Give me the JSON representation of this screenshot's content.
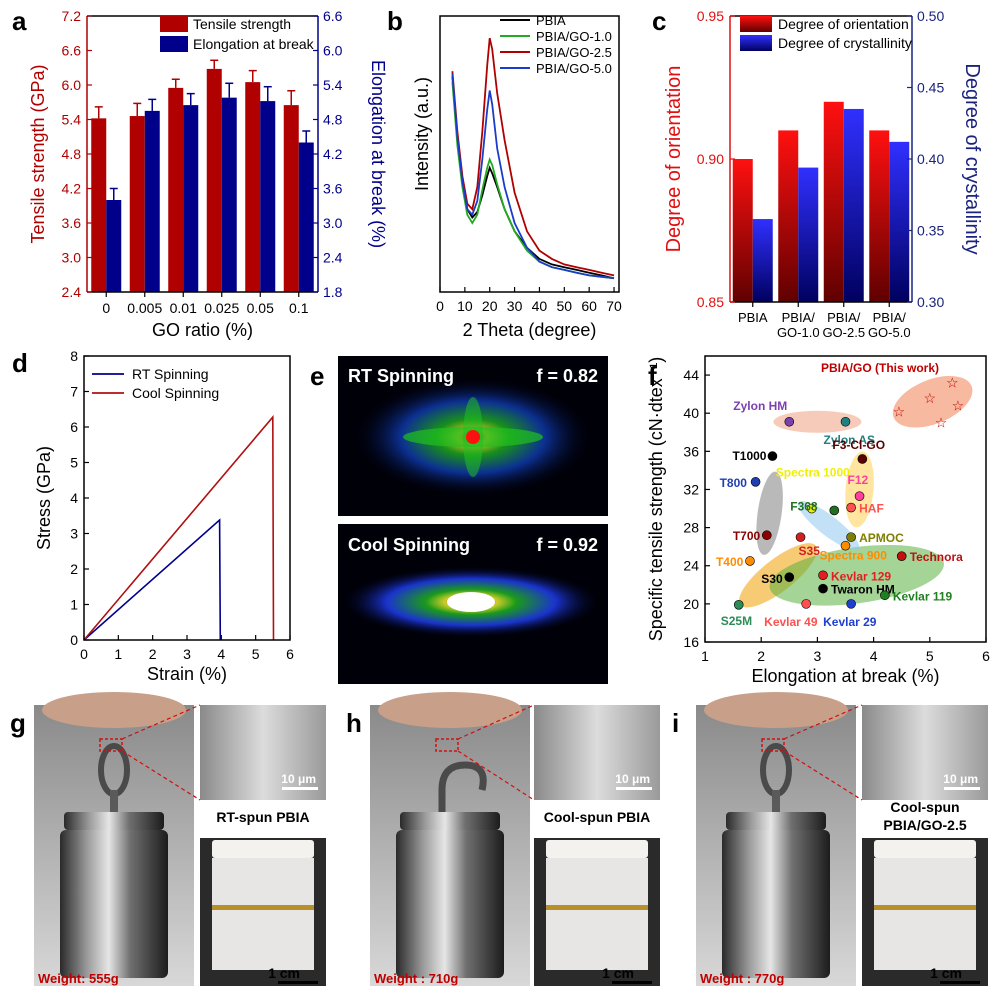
{
  "panel_letters": {
    "a": "a",
    "b": "b",
    "c": "c",
    "d": "d",
    "e": "e",
    "f": "f",
    "g": "g",
    "h": "h",
    "i": "i"
  },
  "colors": {
    "red": "#c00000",
    "blue": "#00008b",
    "black": "#000000",
    "green": "#22aa22",
    "darkred": "#b00000",
    "navy": "#1a237e"
  },
  "chart_data": [
    {
      "id": "a",
      "type": "bar",
      "xlabel": "GO ratio (%)",
      "ylabel_left": "Tensile strength (GPa)",
      "ylabel_right": "Elongation at break (%)",
      "categories": [
        "0",
        "0.005",
        "0.01",
        "0.025",
        "0.05",
        "0.1"
      ],
      "ylim_left": [
        2.4,
        7.2
      ],
      "yticks_left": [
        "2.4",
        "3.0",
        "3.6",
        "4.2",
        "4.8",
        "5.4",
        "6.0",
        "6.6",
        "7.2"
      ],
      "ylim_right": [
        1.8,
        6.6
      ],
      "yticks_right": [
        "1.8",
        "2.4",
        "3.0",
        "3.6",
        "4.2",
        "4.8",
        "5.4",
        "6.0",
        "6.6"
      ],
      "series": [
        {
          "name": "Tensile strength",
          "axis": "left",
          "values": [
            5.42,
            5.46,
            5.95,
            6.28,
            6.05,
            5.65
          ],
          "errors": [
            0.2,
            0.22,
            0.15,
            0.15,
            0.2,
            0.25
          ]
        },
        {
          "name": "Elongation at break",
          "axis": "right",
          "values": [
            3.4,
            4.95,
            5.05,
            5.18,
            5.12,
            4.4
          ],
          "errors": [
            0.2,
            0.2,
            0.2,
            0.25,
            0.25,
            0.2
          ]
        }
      ]
    },
    {
      "id": "b",
      "type": "line",
      "xlabel": "2 Theta (degree)",
      "ylabel": "Intensity (a.u.)",
      "xlim": [
        0,
        72
      ],
      "xticks": [
        "0",
        "10",
        "20",
        "30",
        "40",
        "50",
        "60",
        "70"
      ],
      "series": [
        {
          "name": "PBIA",
          "points": [
            [
              5,
              0.78
            ],
            [
              7,
              0.55
            ],
            [
              9,
              0.4
            ],
            [
              11,
              0.3
            ],
            [
              13,
              0.27
            ],
            [
              15,
              0.29
            ],
            [
              17,
              0.35
            ],
            [
              19,
              0.42
            ],
            [
              20,
              0.45
            ],
            [
              21,
              0.43
            ],
            [
              23,
              0.38
            ],
            [
              26,
              0.3
            ],
            [
              30,
              0.22
            ],
            [
              35,
              0.16
            ],
            [
              40,
              0.12
            ],
            [
              45,
              0.1
            ],
            [
              50,
              0.09
            ],
            [
              55,
              0.08
            ],
            [
              60,
              0.07
            ],
            [
              65,
              0.06
            ],
            [
              70,
              0.05
            ]
          ]
        },
        {
          "name": "PBIA/GO-1.0",
          "points": [
            [
              5,
              0.76
            ],
            [
              7,
              0.53
            ],
            [
              9,
              0.38
            ],
            [
              11,
              0.28
            ],
            [
              13,
              0.25
            ],
            [
              15,
              0.28
            ],
            [
              17,
              0.37
            ],
            [
              19,
              0.45
            ],
            [
              20,
              0.48
            ],
            [
              21,
              0.46
            ],
            [
              23,
              0.39
            ],
            [
              26,
              0.3
            ],
            [
              30,
              0.22
            ],
            [
              35,
              0.15
            ],
            [
              40,
              0.11
            ],
            [
              45,
              0.09
            ],
            [
              50,
              0.08
            ],
            [
              55,
              0.07
            ],
            [
              60,
              0.06
            ],
            [
              65,
              0.055
            ],
            [
              70,
              0.05
            ]
          ]
        },
        {
          "name": "PBIA/GO-2.5",
          "points": [
            [
              5,
              0.8
            ],
            [
              7,
              0.58
            ],
            [
              9,
              0.42
            ],
            [
              11,
              0.32
            ],
            [
              13,
              0.3
            ],
            [
              15,
              0.38
            ],
            [
              17,
              0.58
            ],
            [
              19,
              0.82
            ],
            [
              20,
              0.92
            ],
            [
              21,
              0.88
            ],
            [
              23,
              0.72
            ],
            [
              26,
              0.55
            ],
            [
              30,
              0.36
            ],
            [
              35,
              0.22
            ],
            [
              40,
              0.15
            ],
            [
              45,
              0.12
            ],
            [
              50,
              0.1
            ],
            [
              55,
              0.09
            ],
            [
              60,
              0.08
            ],
            [
              65,
              0.07
            ],
            [
              70,
              0.06
            ]
          ]
        },
        {
          "name": "PBIA/GO-5.0",
          "points": [
            [
              5,
              0.79
            ],
            [
              7,
              0.56
            ],
            [
              9,
              0.4
            ],
            [
              11,
              0.3
            ],
            [
              13,
              0.28
            ],
            [
              15,
              0.33
            ],
            [
              17,
              0.48
            ],
            [
              19,
              0.66
            ],
            [
              20,
              0.73
            ],
            [
              21,
              0.68
            ],
            [
              23,
              0.52
            ],
            [
              26,
              0.38
            ],
            [
              30,
              0.25
            ],
            [
              35,
              0.16
            ],
            [
              40,
              0.11
            ],
            [
              45,
              0.09
            ],
            [
              50,
              0.08
            ],
            [
              55,
              0.07
            ],
            [
              60,
              0.06
            ],
            [
              65,
              0.055
            ],
            [
              70,
              0.05
            ]
          ]
        }
      ]
    },
    {
      "id": "c",
      "type": "bar",
      "ylabel_left": "Degree of orientation",
      "ylabel_right": "Degree of crystallinity",
      "categories": [
        [
          "PBIA"
        ],
        [
          "PBIA/",
          "GO-1.0"
        ],
        [
          "PBIA/",
          "GO-2.5"
        ],
        [
          "PBIA/",
          "GO-5.0"
        ]
      ],
      "ylim_left": [
        0.85,
        0.95
      ],
      "yticks_left": [
        "0.85",
        "0.90",
        "0.95"
      ],
      "ylim_right": [
        0.3,
        0.5
      ],
      "yticks_right": [
        "0.30",
        "0.35",
        "0.40",
        "0.45",
        "0.50"
      ],
      "series": [
        {
          "name": "Degree of orientation",
          "axis": "left",
          "values": [
            0.9,
            0.91,
            0.92,
            0.91
          ]
        },
        {
          "name": "Degree of crystallinity",
          "axis": "right",
          "values": [
            0.358,
            0.394,
            0.435,
            0.412
          ]
        }
      ]
    },
    {
      "id": "d",
      "type": "line",
      "xlabel": "Strain (%)",
      "ylabel": "Stress (GPa)",
      "xlim": [
        0,
        6
      ],
      "ylim": [
        0,
        8
      ],
      "xticks": [
        "0",
        "1",
        "2",
        "3",
        "4",
        "5",
        "6"
      ],
      "yticks": [
        "0",
        "1",
        "2",
        "3",
        "4",
        "5",
        "6",
        "7",
        "8"
      ],
      "series": [
        {
          "name": "RT Spinning",
          "points": [
            [
              0,
              0
            ],
            [
              3.95,
              3.38
            ],
            [
              3.97,
              0
            ]
          ]
        },
        {
          "name": "Cool Spinning",
          "points": [
            [
              0,
              0
            ],
            [
              5.5,
              6.28
            ],
            [
              5.52,
              0
            ]
          ]
        }
      ]
    },
    {
      "id": "f",
      "type": "scatter",
      "xlabel": "Elongation at break (%)",
      "ylabel": "Specific tensile strength (cN·dtex⁻¹)",
      "xlim": [
        1,
        6
      ],
      "ylim": [
        16,
        46
      ],
      "xticks": [
        "1",
        "2",
        "3",
        "4",
        "5",
        "6"
      ],
      "yticks": [
        "16",
        "20",
        "24",
        "28",
        "32",
        "36",
        "40",
        "44"
      ],
      "points": [
        {
          "label": "T1000",
          "x": 2.2,
          "y": 35.5
        },
        {
          "label": "T800",
          "x": 1.9,
          "y": 32.8
        },
        {
          "label": "T700",
          "x": 2.1,
          "y": 27.2
        },
        {
          "label": "T400",
          "x": 1.8,
          "y": 24.5
        },
        {
          "label": "S25M",
          "x": 1.6,
          "y": 19.9
        },
        {
          "label": "S30",
          "x": 2.5,
          "y": 22.8
        },
        {
          "label": "S35",
          "x": 2.7,
          "y": 27.0
        },
        {
          "label": "Zylon HM",
          "x": 2.5,
          "y": 39.1
        },
        {
          "label": "Zylon AS",
          "x": 3.5,
          "y": 39.1
        },
        {
          "label": "Spectra 1000",
          "x": 2.9,
          "y": 30.0
        },
        {
          "label": "Spectra 900",
          "x": 3.5,
          "y": 26.1
        },
        {
          "label": "F3-Cl-GO",
          "x": 3.8,
          "y": 35.2
        },
        {
          "label": "F12",
          "x": 3.75,
          "y": 31.3
        },
        {
          "label": "F368",
          "x": 3.3,
          "y": 29.8
        },
        {
          "label": "HAF",
          "x": 3.6,
          "y": 30.1
        },
        {
          "label": "APMOC",
          "x": 3.6,
          "y": 27.0
        },
        {
          "label": "Technora",
          "x": 4.5,
          "y": 25.0
        },
        {
          "label": "Kevlar 129",
          "x": 3.1,
          "y": 23.0
        },
        {
          "label": "Twaron HM",
          "x": 3.1,
          "y": 21.6
        },
        {
          "label": "Kevlar 49",
          "x": 2.8,
          "y": 20.0
        },
        {
          "label": "Kevlar 29",
          "x": 3.6,
          "y": 20.0
        },
        {
          "label": "Kevlar 119",
          "x": 4.2,
          "y": 20.9
        },
        {
          "label": "PBIA/GO (This work)",
          "x": 4.45,
          "y": 40.2
        },
        {
          "label": "PBIA/GO (This work)",
          "x": 5.0,
          "y": 41.6
        },
        {
          "label": "PBIA/GO (This work)",
          "x": 5.4,
          "y": 43.2
        },
        {
          "label": "PBIA/GO (This work)",
          "x": 5.2,
          "y": 39.0
        },
        {
          "label": "PBIA/GO (This work)",
          "x": 5.5,
          "y": 40.8
        }
      ]
    }
  ],
  "panel_e": {
    "top": {
      "title": "RT Spinning",
      "f_value": "f = 0.82"
    },
    "bottom": {
      "title": "Cool Spinning",
      "f_value": "f = 0.92"
    }
  },
  "photos": {
    "g": {
      "weight": "Weight: 555g",
      "scale_sem": "10 μm",
      "caption": "RT-spun PBIA",
      "scale_cm": "1 cm"
    },
    "h": {
      "weight": "Weight : 710g",
      "scale_sem": "10 μm",
      "caption": "Cool-spun PBIA",
      "scale_cm": "1 cm"
    },
    "i": {
      "weight": "Weight : 770g",
      "scale_sem": "10 μm",
      "caption_line1": "Cool-spun",
      "caption_line2": "PBIA/GO-2.5",
      "scale_cm": "1 cm"
    }
  }
}
